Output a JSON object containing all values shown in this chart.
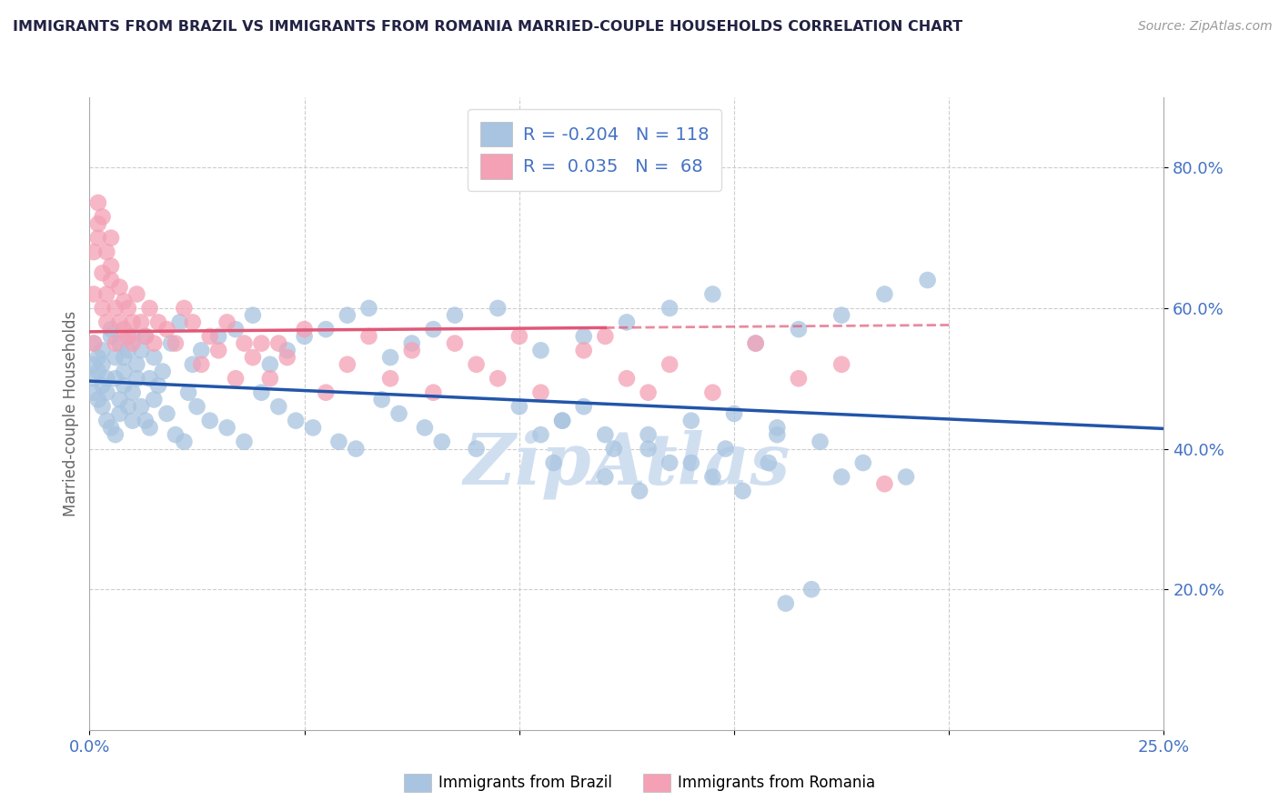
{
  "title": "IMMIGRANTS FROM BRAZIL VS IMMIGRANTS FROM ROMANIA MARRIED-COUPLE HOUSEHOLDS CORRELATION CHART",
  "source": "Source: ZipAtlas.com",
  "ylabel": "Married-couple Households",
  "xlim": [
    0.0,
    0.25
  ],
  "ylim": [
    0.0,
    0.9
  ],
  "brazil_R": -0.204,
  "brazil_N": 118,
  "romania_R": 0.035,
  "romania_N": 68,
  "brazil_color": "#a8c4e0",
  "romania_color": "#f4a0b5",
  "brazil_line_color": "#2255aa",
  "romania_line_color": "#e05878",
  "legend_label_brazil": "Immigrants from Brazil",
  "legend_label_romania": "Immigrants from Romania",
  "background_color": "#ffffff",
  "grid_color": "#c8c8c8",
  "title_color": "#222244",
  "tick_label_color": "#4472c4",
  "watermark_text": "ZipAtlas",
  "watermark_color": "#d0dff0",
  "brazil_scatter_x": [
    0.001,
    0.001,
    0.001,
    0.001,
    0.002,
    0.002,
    0.002,
    0.003,
    0.003,
    0.003,
    0.003,
    0.004,
    0.004,
    0.004,
    0.005,
    0.005,
    0.005,
    0.006,
    0.006,
    0.006,
    0.007,
    0.007,
    0.007,
    0.008,
    0.008,
    0.008,
    0.009,
    0.009,
    0.01,
    0.01,
    0.01,
    0.011,
    0.011,
    0.012,
    0.012,
    0.013,
    0.013,
    0.014,
    0.014,
    0.015,
    0.015,
    0.016,
    0.017,
    0.018,
    0.019,
    0.02,
    0.021,
    0.022,
    0.023,
    0.024,
    0.025,
    0.026,
    0.028,
    0.03,
    0.032,
    0.034,
    0.036,
    0.038,
    0.04,
    0.042,
    0.044,
    0.046,
    0.048,
    0.05,
    0.052,
    0.055,
    0.058,
    0.06,
    0.062,
    0.065,
    0.068,
    0.07,
    0.072,
    0.075,
    0.078,
    0.08,
    0.082,
    0.085,
    0.09,
    0.095,
    0.1,
    0.105,
    0.11,
    0.115,
    0.12,
    0.125,
    0.13,
    0.135,
    0.14,
    0.145,
    0.15,
    0.155,
    0.16,
    0.165,
    0.17,
    0.175,
    0.18,
    0.185,
    0.19,
    0.195,
    0.105,
    0.108,
    0.11,
    0.115,
    0.12,
    0.122,
    0.128,
    0.13,
    0.135,
    0.14,
    0.145,
    0.148,
    0.152,
    0.158,
    0.16,
    0.162,
    0.168,
    0.175
  ],
  "brazil_scatter_y": [
    0.5,
    0.52,
    0.48,
    0.55,
    0.47,
    0.51,
    0.53,
    0.49,
    0.52,
    0.46,
    0.54,
    0.48,
    0.5,
    0.44,
    0.56,
    0.43,
    0.57,
    0.42,
    0.5,
    0.53,
    0.47,
    0.55,
    0.45,
    0.51,
    0.49,
    0.53,
    0.46,
    0.54,
    0.44,
    0.56,
    0.48,
    0.52,
    0.5,
    0.46,
    0.54,
    0.44,
    0.56,
    0.43,
    0.5,
    0.47,
    0.53,
    0.49,
    0.51,
    0.45,
    0.55,
    0.42,
    0.58,
    0.41,
    0.48,
    0.52,
    0.46,
    0.54,
    0.44,
    0.56,
    0.43,
    0.57,
    0.41,
    0.59,
    0.48,
    0.52,
    0.46,
    0.54,
    0.44,
    0.56,
    0.43,
    0.57,
    0.41,
    0.59,
    0.4,
    0.6,
    0.47,
    0.53,
    0.45,
    0.55,
    0.43,
    0.57,
    0.41,
    0.59,
    0.4,
    0.6,
    0.46,
    0.54,
    0.44,
    0.56,
    0.42,
    0.58,
    0.4,
    0.6,
    0.38,
    0.62,
    0.45,
    0.55,
    0.43,
    0.57,
    0.41,
    0.59,
    0.38,
    0.62,
    0.36,
    0.64,
    0.42,
    0.38,
    0.44,
    0.46,
    0.36,
    0.4,
    0.34,
    0.42,
    0.38,
    0.44,
    0.36,
    0.4,
    0.34,
    0.38,
    0.42,
    0.18,
    0.2,
    0.36
  ],
  "romania_scatter_x": [
    0.001,
    0.001,
    0.001,
    0.002,
    0.002,
    0.002,
    0.003,
    0.003,
    0.003,
    0.004,
    0.004,
    0.004,
    0.005,
    0.005,
    0.005,
    0.006,
    0.006,
    0.007,
    0.007,
    0.008,
    0.008,
    0.009,
    0.009,
    0.01,
    0.01,
    0.011,
    0.012,
    0.013,
    0.014,
    0.015,
    0.016,
    0.018,
    0.02,
    0.022,
    0.024,
    0.026,
    0.028,
    0.03,
    0.032,
    0.034,
    0.036,
    0.038,
    0.04,
    0.042,
    0.044,
    0.046,
    0.05,
    0.055,
    0.06,
    0.065,
    0.07,
    0.075,
    0.08,
    0.085,
    0.09,
    0.095,
    0.1,
    0.105,
    0.115,
    0.125,
    0.135,
    0.145,
    0.155,
    0.165,
    0.175,
    0.12,
    0.13,
    0.185
  ],
  "romania_scatter_y": [
    0.55,
    0.62,
    0.68,
    0.72,
    0.75,
    0.7,
    0.65,
    0.73,
    0.6,
    0.58,
    0.62,
    0.68,
    0.64,
    0.7,
    0.66,
    0.55,
    0.6,
    0.58,
    0.63,
    0.57,
    0.61,
    0.56,
    0.6,
    0.58,
    0.55,
    0.62,
    0.58,
    0.56,
    0.6,
    0.55,
    0.58,
    0.57,
    0.55,
    0.6,
    0.58,
    0.52,
    0.56,
    0.54,
    0.58,
    0.5,
    0.55,
    0.53,
    0.55,
    0.5,
    0.55,
    0.53,
    0.57,
    0.48,
    0.52,
    0.56,
    0.5,
    0.54,
    0.48,
    0.55,
    0.52,
    0.5,
    0.56,
    0.48,
    0.54,
    0.5,
    0.52,
    0.48,
    0.55,
    0.5,
    0.52,
    0.56,
    0.48,
    0.35
  ]
}
